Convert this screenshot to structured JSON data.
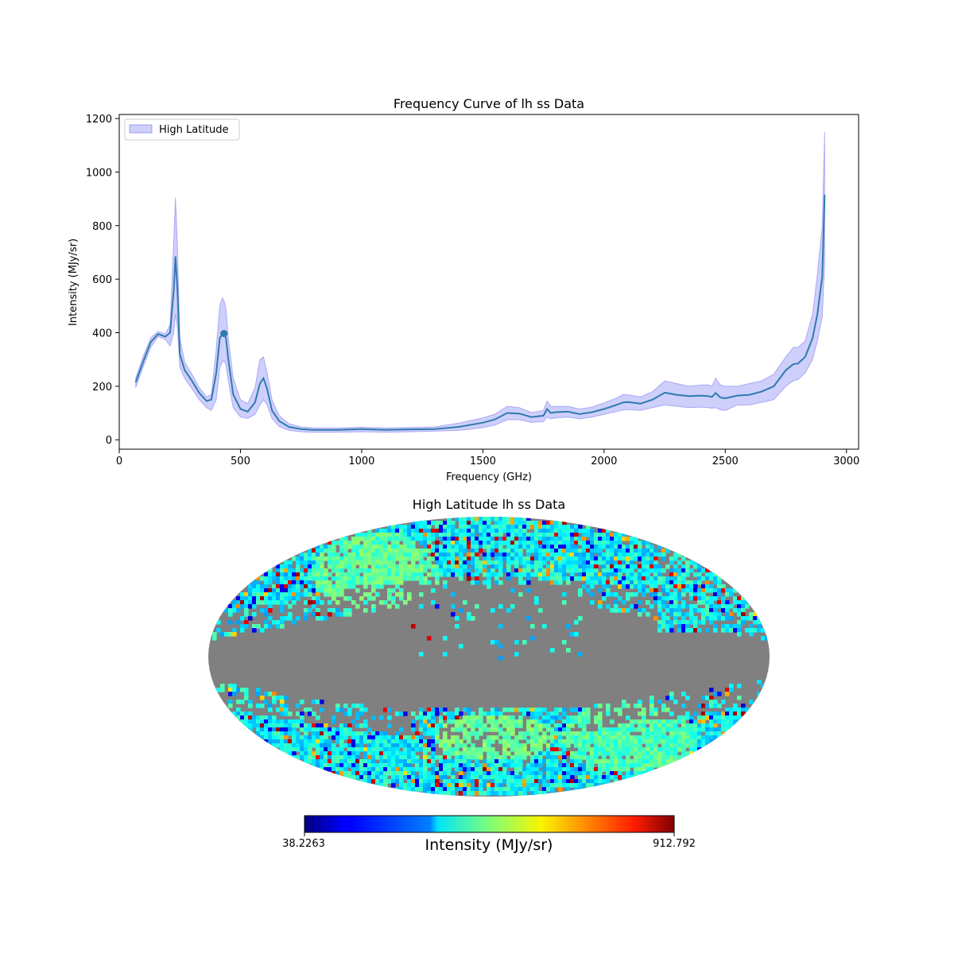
{
  "chart_data": [
    {
      "type": "line",
      "title": "Frequency Curve of lh ss Data",
      "xlabel": "Frequency (GHz)",
      "ylabel": "Intensity (MJy/sr)",
      "xlim": [
        0,
        3050
      ],
      "ylim": [
        -35,
        1215
      ],
      "xticks": [
        0,
        500,
        1000,
        1500,
        2000,
        2500,
        3000
      ],
      "yticks": [
        0,
        200,
        400,
        600,
        800,
        1000,
        1200
      ],
      "legend": {
        "location": "top-left",
        "entries": [
          "High Latitude"
        ]
      },
      "colors": {
        "line": "#2f7bad",
        "band": "#8c8cf7",
        "band_edge": "#7070ee"
      },
      "series": [
        {
          "name": "High Latitude",
          "x": [
            68,
            100,
            130,
            160,
            190,
            210,
            225,
            232,
            240,
            250,
            270,
            300,
            330,
            360,
            380,
            400,
            415,
            425,
            432,
            440,
            450,
            470,
            500,
            530,
            560,
            580,
            595,
            610,
            630,
            660,
            700,
            750,
            800,
            900,
            1000,
            1100,
            1200,
            1300,
            1400,
            1450,
            1500,
            1550,
            1600,
            1650,
            1700,
            1750,
            1765,
            1780,
            1800,
            1850,
            1900,
            1950,
            2000,
            2050,
            2080,
            2100,
            2150,
            2200,
            2250,
            2300,
            2350,
            2400,
            2430,
            2445,
            2460,
            2480,
            2500,
            2550,
            2600,
            2650,
            2700,
            2750,
            2780,
            2800,
            2830,
            2860,
            2880,
            2900,
            2910
          ],
          "mean": [
            215,
            295,
            365,
            395,
            385,
            400,
            560,
            685,
            560,
            320,
            260,
            220,
            175,
            145,
            150,
            250,
            380,
            395,
            397,
            380,
            300,
            170,
            115,
            105,
            140,
            210,
            230,
            190,
            110,
            70,
            48,
            40,
            37,
            37,
            40,
            37,
            39,
            40,
            48,
            56,
            64,
            76,
            100,
            98,
            85,
            90,
            115,
            100,
            103,
            105,
            96,
            103,
            115,
            130,
            140,
            141,
            135,
            150,
            176,
            168,
            163,
            165,
            163,
            160,
            175,
            158,
            155,
            165,
            168,
            180,
            200,
            260,
            282,
            285,
            310,
            380,
            470,
            610,
            915
          ],
          "upper": [
            230,
            315,
            380,
            405,
            395,
            430,
            750,
            905,
            720,
            380,
            290,
            245,
            195,
            160,
            170,
            340,
            500,
            530,
            520,
            490,
            380,
            230,
            150,
            135,
            195,
            300,
            310,
            250,
            150,
            90,
            60,
            48,
            45,
            44,
            47,
            44,
            46,
            48,
            62,
            72,
            82,
            96,
            125,
            120,
            102,
            110,
            145,
            125,
            125,
            125,
            115,
            122,
            138,
            155,
            170,
            168,
            160,
            180,
            220,
            210,
            200,
            205,
            205,
            200,
            230,
            205,
            200,
            200,
            210,
            220,
            245,
            310,
            345,
            345,
            370,
            470,
            620,
            800,
            1150
          ],
          "lower": [
            195,
            275,
            345,
            385,
            375,
            350,
            400,
            470,
            420,
            270,
            230,
            190,
            150,
            120,
            110,
            150,
            270,
            290,
            295,
            280,
            220,
            120,
            85,
            80,
            95,
            130,
            150,
            130,
            80,
            50,
            35,
            30,
            28,
            28,
            30,
            28,
            30,
            32,
            35,
            40,
            46,
            55,
            75,
            75,
            65,
            68,
            85,
            78,
            82,
            85,
            78,
            85,
            95,
            105,
            112,
            113,
            110,
            120,
            130,
            125,
            120,
            122,
            120,
            118,
            120,
            112,
            110,
            130,
            130,
            140,
            150,
            200,
            220,
            225,
            250,
            300,
            370,
            460,
            660
          ]
        }
      ],
      "annotation_point": {
        "x": 432,
        "y": 397
      }
    },
    {
      "type": "heatmap",
      "title": "High Latitude lh ss Data",
      "projection": "mollweide",
      "colormap": "jet",
      "mask_color": "#808080",
      "colorbar": {
        "min_label": "38.2263",
        "max_label": "912.792",
        "label": "Intensity (MJy/sr)",
        "min": 38.2263,
        "max": 912.792
      }
    }
  ]
}
